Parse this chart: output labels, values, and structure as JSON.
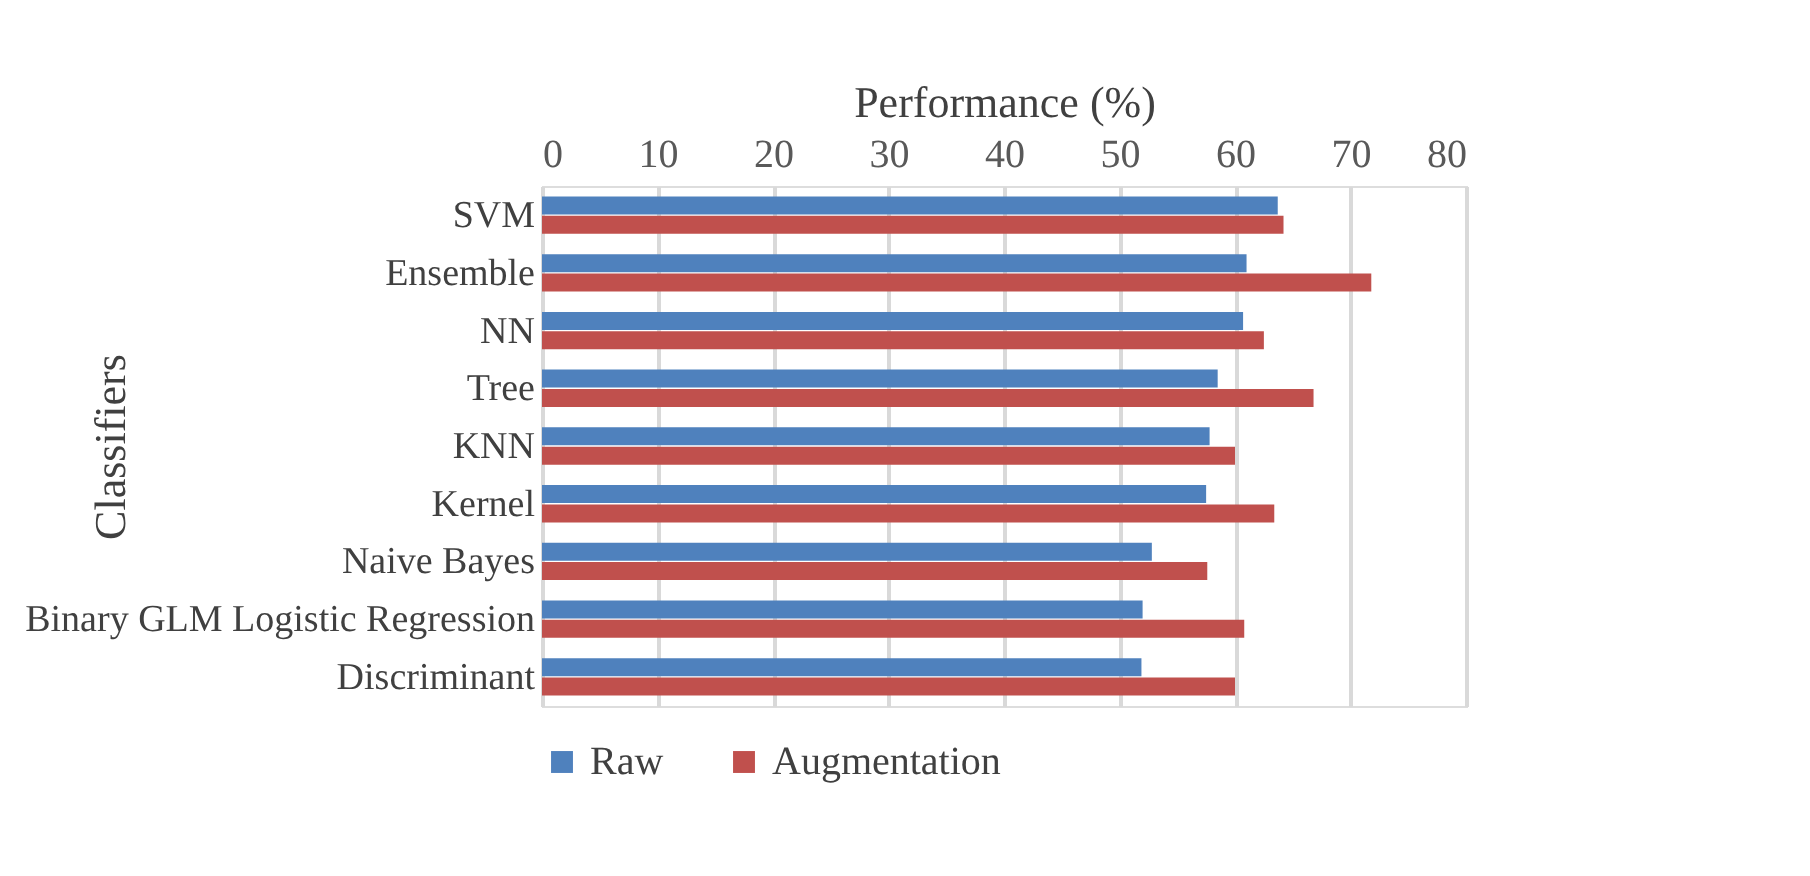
{
  "chart_data": {
    "type": "bar",
    "orientation": "horizontal",
    "xlabel": "Performance (%)",
    "ylabel": "Classifiers",
    "categories": [
      "SVM",
      "Ensemble",
      "NN",
      "Tree",
      "KNN",
      "Kernel",
      "Naive Bayes",
      "Binary GLM Logistic Regression",
      "Discriminant"
    ],
    "series": [
      {
        "name": "Raw",
        "color": "#4f81bd",
        "values": [
          63.7,
          61.0,
          60.7,
          58.5,
          57.8,
          57.5,
          52.8,
          52.0,
          51.9
        ]
      },
      {
        "name": "Augmentation",
        "color": "#c0504d",
        "values": [
          64.2,
          71.8,
          62.5,
          66.8,
          60.0,
          63.4,
          57.6,
          60.8,
          60.0
        ]
      }
    ],
    "xlim": [
      0,
      80
    ],
    "xticks": [
      0,
      10,
      20,
      30,
      40,
      50,
      60,
      70,
      80
    ],
    "grid": "x",
    "legend": "bottom"
  }
}
